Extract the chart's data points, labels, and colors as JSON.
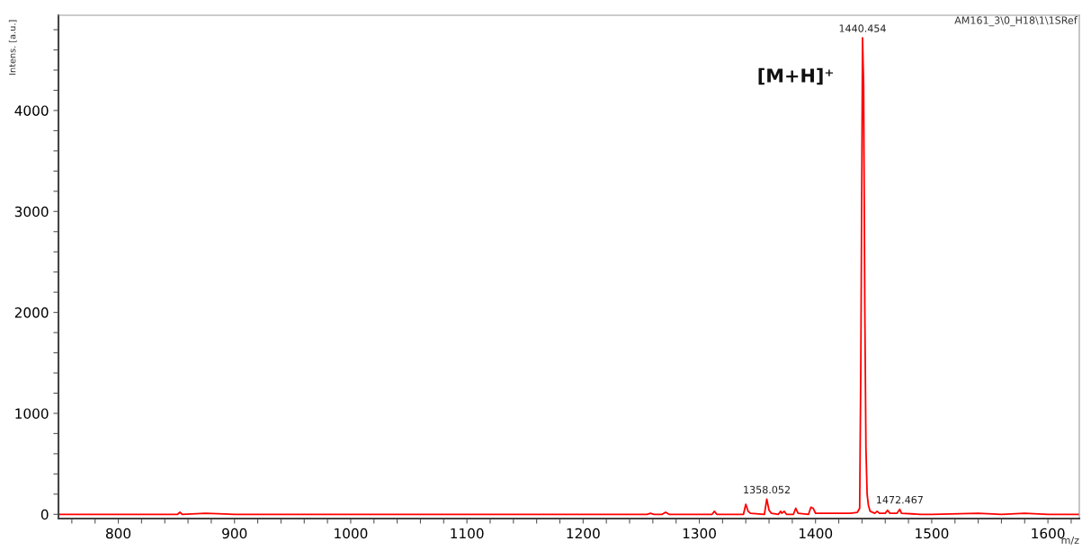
{
  "chart_data": {
    "type": "line",
    "xlabel": "m/z",
    "ylabel": "Intens. [a.u.]",
    "xlim": [
      748.5,
      1627
    ],
    "ylim": [
      -42,
      4943
    ],
    "xticks": [
      {
        "value": 760,
        "label": null
      },
      {
        "value": 780,
        "label": null
      },
      800,
      {
        "value": 820,
        "label": null
      },
      {
        "value": 840,
        "label": null
      },
      {
        "value": 860,
        "label": null
      },
      {
        "value": 880,
        "label": null
      },
      900,
      {
        "value": 920,
        "label": null
      },
      {
        "value": 940,
        "label": null
      },
      {
        "value": 960,
        "label": null
      },
      {
        "value": 980,
        "label": null
      },
      1000,
      {
        "value": 1020,
        "label": null
      },
      {
        "value": 1040,
        "label": null
      },
      {
        "value": 1060,
        "label": null
      },
      {
        "value": 1080,
        "label": null
      },
      1100,
      {
        "value": 1120,
        "label": null
      },
      {
        "value": 1140,
        "label": null
      },
      {
        "value": 1160,
        "label": null
      },
      {
        "value": 1180,
        "label": null
      },
      1200,
      {
        "value": 1220,
        "label": null
      },
      {
        "value": 1240,
        "label": null
      },
      {
        "value": 1260,
        "label": null
      },
      {
        "value": 1280,
        "label": null
      },
      1300,
      {
        "value": 1320,
        "label": null
      },
      {
        "value": 1340,
        "label": null
      },
      {
        "value": 1360,
        "label": null
      },
      {
        "value": 1380,
        "label": null
      },
      1400,
      {
        "value": 1420,
        "label": null
      },
      {
        "value": 1440,
        "label": null
      },
      {
        "value": 1460,
        "label": null
      },
      {
        "value": 1480,
        "label": null
      },
      1500,
      {
        "value": 1520,
        "label": null
      },
      {
        "value": 1540,
        "label": null
      },
      {
        "value": 1560,
        "label": null
      },
      {
        "value": 1580,
        "label": null
      },
      1600,
      {
        "value": 1620,
        "label": null
      }
    ],
    "yticks": [
      0,
      {
        "value": 200,
        "label": null
      },
      {
        "value": 400,
        "label": null
      },
      {
        "value": 600,
        "label": null
      },
      {
        "value": 800,
        "label": null
      },
      1000,
      {
        "value": 1200,
        "label": null
      },
      {
        "value": 1400,
        "label": null
      },
      {
        "value": 1600,
        "label": null
      },
      {
        "value": 1800,
        "label": null
      },
      2000,
      {
        "value": 2200,
        "label": null
      },
      {
        "value": 2400,
        "label": null
      },
      {
        "value": 2600,
        "label": null
      },
      {
        "value": 2800,
        "label": null
      },
      3000,
      {
        "value": 3200,
        "label": null
      },
      {
        "value": 3400,
        "label": null
      },
      {
        "value": 3600,
        "label": null
      },
      {
        "value": 3800,
        "label": null
      },
      4000,
      {
        "value": 4200,
        "label": null
      },
      {
        "value": 4400,
        "label": null
      },
      {
        "value": 4600,
        "label": null
      },
      {
        "value": 4800,
        "label": null
      }
    ],
    "grid": false,
    "legend": false,
    "marker": "none",
    "line_style": "solid",
    "series": [
      {
        "color": "#ff0000",
        "x": [
          749,
          760,
          800,
          851,
          853,
          855,
          875,
          900,
          950,
          1000,
          1050,
          1100,
          1150,
          1200,
          1255,
          1258,
          1261,
          1268,
          1271,
          1274,
          1300,
          1311,
          1313,
          1315,
          1338,
          1340,
          1342,
          1344,
          1356,
          1358.052,
          1360,
          1362,
          1368,
          1370,
          1371,
          1373,
          1375,
          1381,
          1383,
          1385,
          1394,
          1396,
          1398,
          1400,
          1420,
          1430,
          1436,
          1438,
          1439,
          1440.454,
          1441.4,
          1442.4,
          1443.4,
          1444.4,
          1445.5,
          1447,
          1451,
          1453,
          1455,
          1460,
          1462,
          1464,
          1470,
          1472.467,
          1474,
          1490,
          1500,
          1540,
          1560,
          1580,
          1600,
          1627
        ],
        "values": [
          0,
          0,
          0,
          0,
          20,
          0,
          10,
          0,
          0,
          0,
          0,
          0,
          0,
          0,
          0,
          10,
          0,
          0,
          20,
          0,
          0,
          0,
          30,
          0,
          0,
          100,
          30,
          10,
          0,
          150,
          40,
          10,
          0,
          30,
          10,
          30,
          0,
          0,
          60,
          10,
          0,
          70,
          60,
          10,
          10,
          10,
          20,
          60,
          1500,
          4720,
          4250,
          2070,
          650,
          200,
          90,
          30,
          10,
          30,
          10,
          10,
          40,
          10,
          10,
          50,
          10,
          0,
          0,
          10,
          0,
          10,
          0,
          0
        ]
      }
    ],
    "annotations": [
      {
        "text": "1440.454",
        "x": 1440.454,
        "y": 4720
      },
      {
        "text": "1358.052",
        "x": 1358.052,
        "y": 150
      },
      {
        "text": "1472.467",
        "x": 1472.467,
        "y": 50
      },
      "[M+H]⁺",
      "AM161_3\\0_H18\\1\\1SRef"
    ]
  }
}
